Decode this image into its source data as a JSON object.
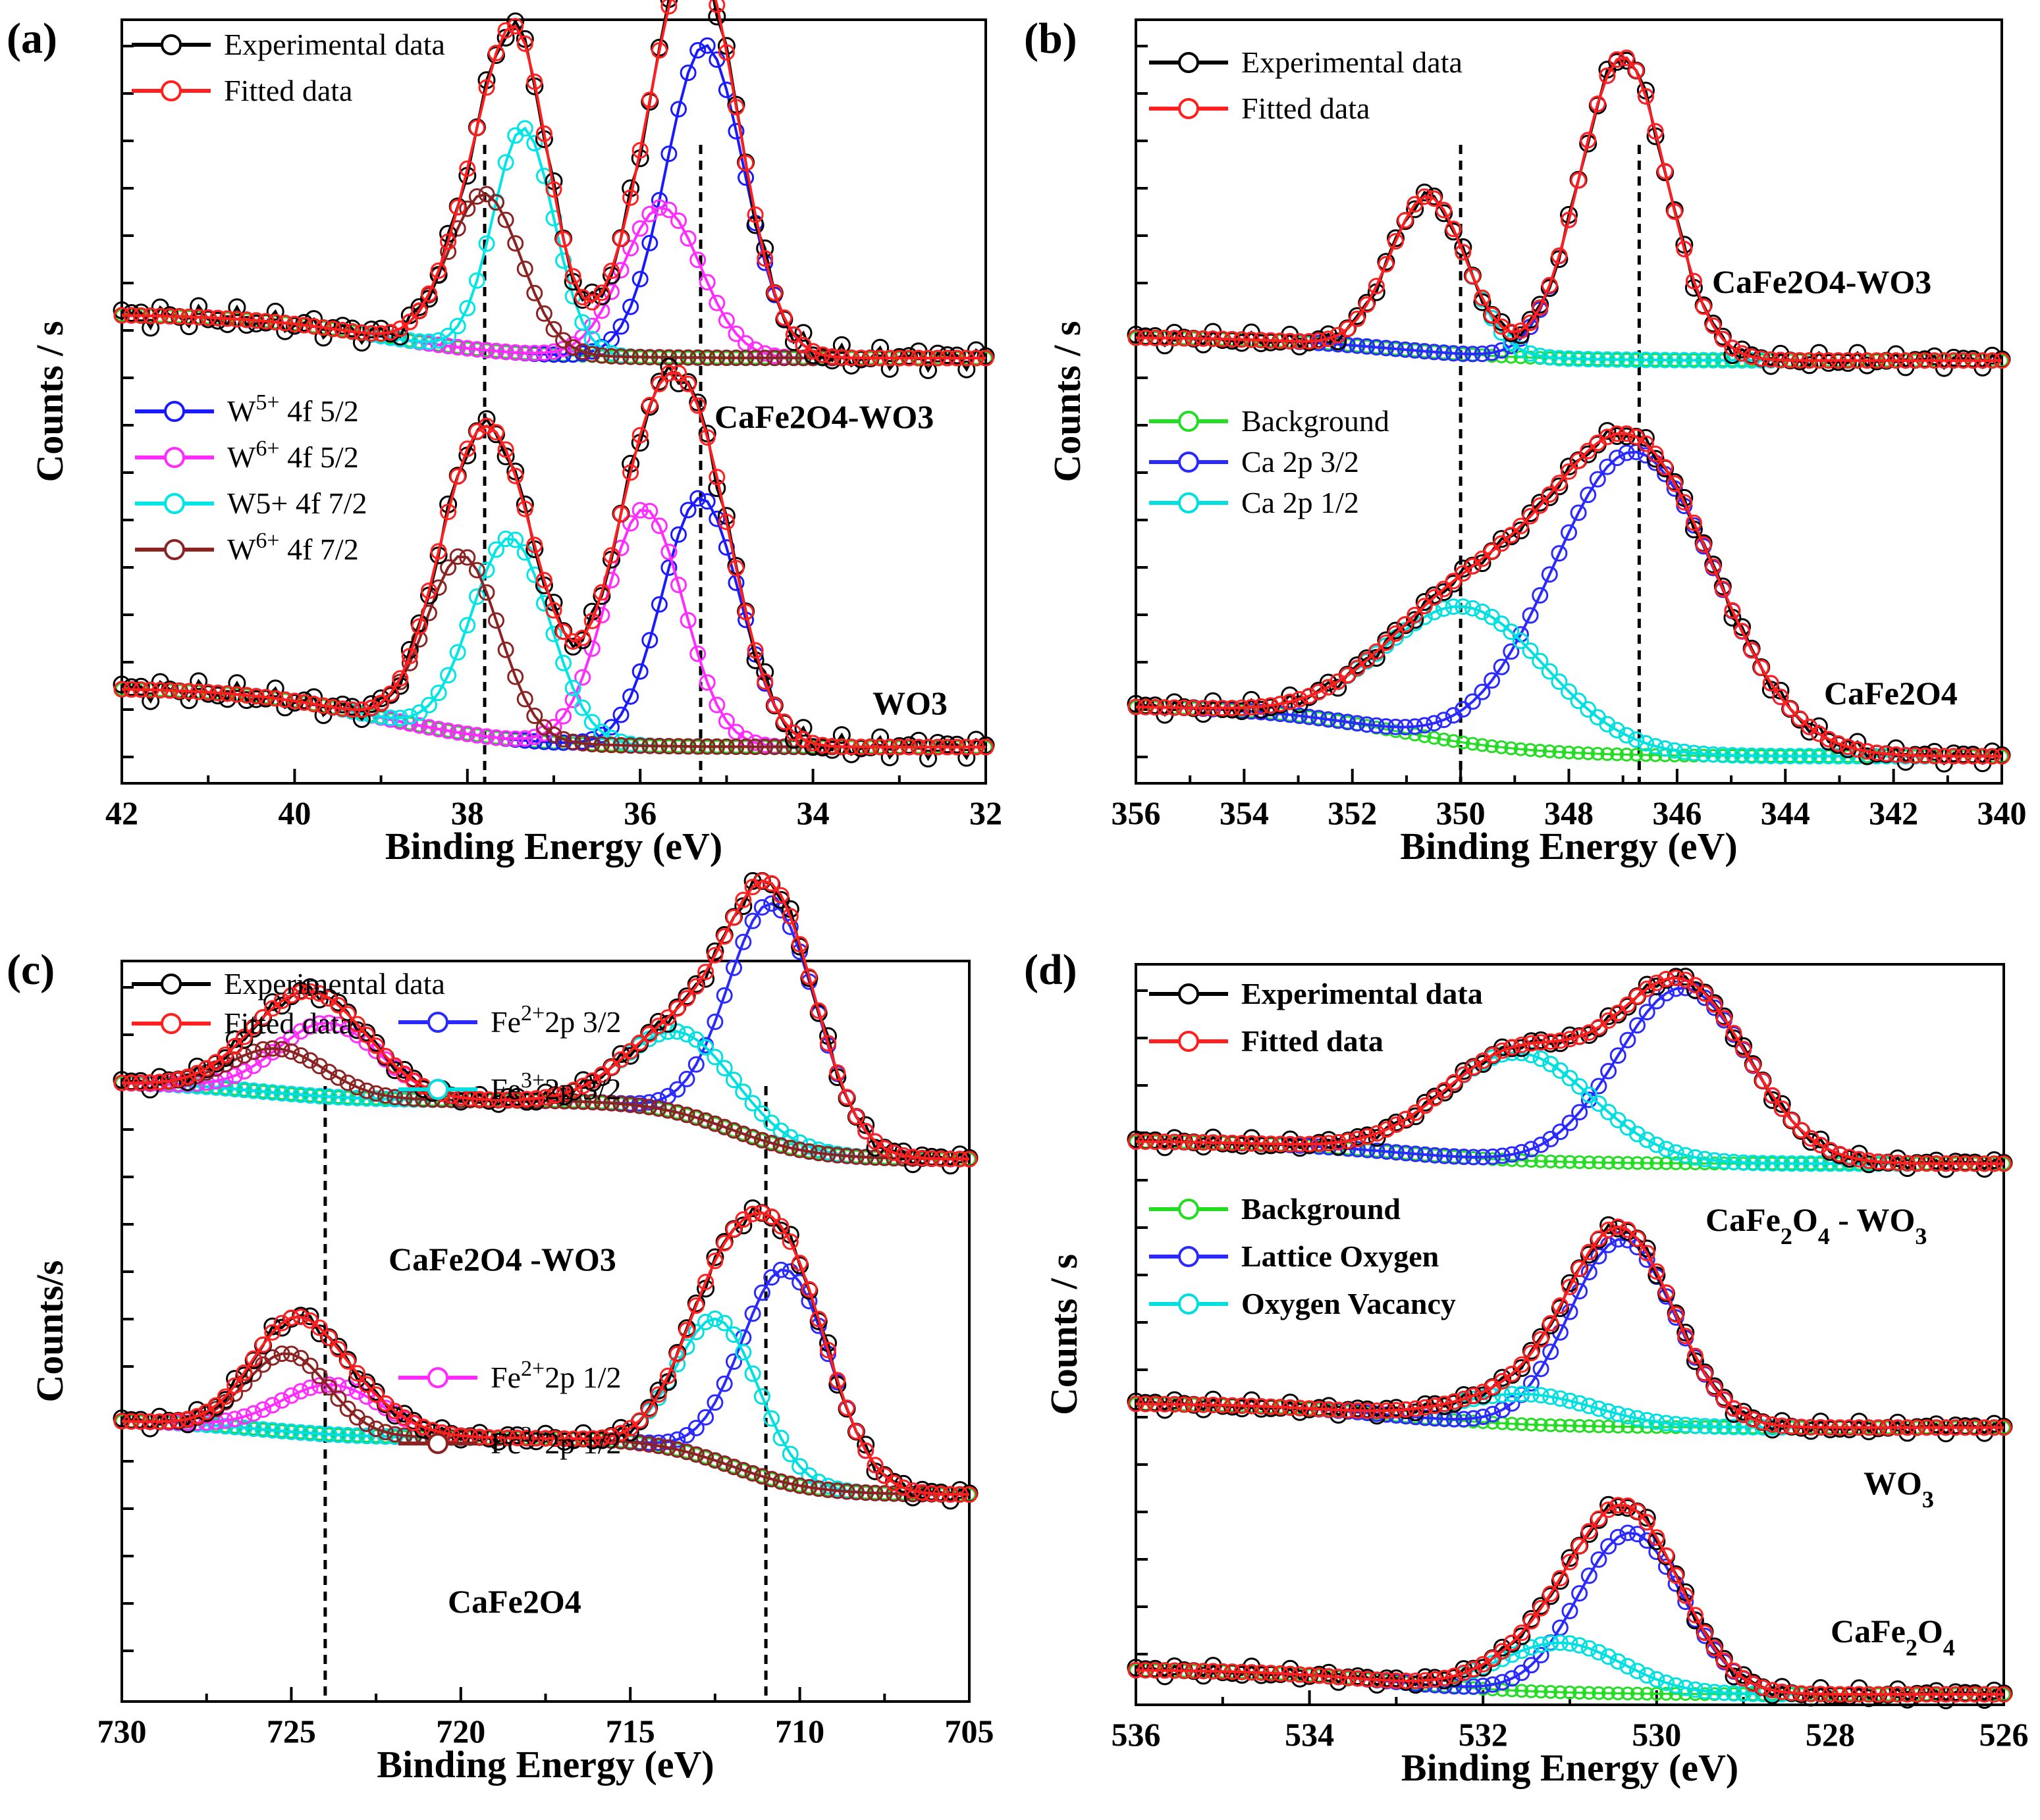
{
  "figure": {
    "colors": {
      "experimental": "#000000",
      "fitted": "#ff1f1f",
      "background": "#22dd22",
      "w5_52": "#1a1aff",
      "w6_52": "#ff2bff",
      "w5_72": "#00e5e5",
      "w6_72": "#8b2323",
      "ca_3_2": "#2a2aff",
      "ca_1_2": "#00e0e0",
      "fe2_3_2": "#2a2aff",
      "fe3_3_2": "#00e0e0",
      "fe2_1_2": "#ff2bff",
      "fe3_1_2": "#8b2323",
      "lattice": "#2a2aff",
      "vacancy": "#00e0e0"
    }
  },
  "chart_data": [
    {
      "panel": "(a)",
      "type": "line",
      "xlabel": "Binding Energy (eV)",
      "ylabel": "Counts / s",
      "xlim": [
        42,
        32
      ],
      "x_ticks": [
        42,
        40,
        38,
        36,
        34,
        32
      ],
      "y_ticks_labeled": false,
      "grid": false,
      "legend": [
        {
          "key": "exp",
          "label": "Experimental data",
          "color": "experimental"
        },
        {
          "key": "fit",
          "label": "Fitted data",
          "color": "fitted"
        },
        {
          "key": "p1",
          "label_main": "W",
          "label_sup": "5+",
          "label_rest": " 4f 5/2",
          "color": "w5_52"
        },
        {
          "key": "p2",
          "label_main": "W",
          "label_sup": "6+",
          "label_rest": " 4f 5/2",
          "color": "w6_52"
        },
        {
          "key": "p3",
          "label_main": "W5+ 4f 7/2",
          "label_sup": "",
          "label_rest": "",
          "color": "w5_72"
        },
        {
          "key": "p4",
          "label_main": "W",
          "label_sup": "6+",
          "label_rest": " 4f 7/2",
          "color": "w6_72"
        }
      ],
      "dashed_lines_x": [
        37.8,
        35.3
      ],
      "samples": [
        {
          "label": "CaFe2O4-WO3",
          "baseline": {
            "start": 0.05,
            "end": -0.02,
            "mid": 38
          },
          "peaks": [
            {
              "key": "p1",
              "center": 35.25,
              "height": 0.5,
              "width": 0.45
            },
            {
              "key": "p2",
              "center": 35.75,
              "height": 0.24,
              "width": 0.45
            },
            {
              "key": "p3",
              "center": 37.35,
              "height": 0.36,
              "width": 0.35
            },
            {
              "key": "p4",
              "center": 37.8,
              "height": 0.25,
              "width": 0.42
            }
          ]
        },
        {
          "label": "WO3",
          "baseline": {
            "start": 0.05,
            "end": -0.05,
            "mid": 38
          },
          "peaks": [
            {
              "key": "p1",
              "center": 35.3,
              "height": 0.42,
              "width": 0.45
            },
            {
              "key": "p2",
              "center": 35.95,
              "height": 0.4,
              "width": 0.45
            },
            {
              "key": "p3",
              "center": 37.5,
              "height": 0.34,
              "width": 0.45
            },
            {
              "key": "p4",
              "center": 38.05,
              "height": 0.3,
              "width": 0.42
            }
          ]
        }
      ]
    },
    {
      "panel": "(b)",
      "type": "line",
      "xlabel": "Binding Energy (eV)",
      "ylabel": "Counts / s",
      "xlim": [
        356,
        340
      ],
      "x_ticks": [
        356,
        354,
        352,
        350,
        348,
        346,
        344,
        342,
        340
      ],
      "y_ticks_labeled": false,
      "grid": false,
      "legend_top": [
        {
          "key": "exp",
          "label": "Experimental data",
          "color": "experimental"
        },
        {
          "key": "fit",
          "label": " Fitted data",
          "color": "fitted"
        }
      ],
      "legend_mid": [
        {
          "key": "bg",
          "label": "Background",
          "color": "background"
        },
        {
          "key": "p1",
          "label": "Ca 2p 3/2",
          "color": "ca_3_2"
        },
        {
          "key": "p2",
          "label": "Ca 2p 1/2",
          "color": "ca_1_2"
        }
      ],
      "dashed_lines_x": [
        350,
        346.7
      ],
      "samples": [
        {
          "label": "CaFe2O4-WO3",
          "baseline": {
            "start": 0.03,
            "end": -0.03
          },
          "peaks": [
            {
              "key": "p1",
              "center": 347.0,
              "height": 0.78,
              "width": 0.8
            },
            {
              "key": "p2",
              "center": 350.6,
              "height": 0.4,
              "width": 0.7
            }
          ]
        },
        {
          "label": "CaFe2O4",
          "baseline": {
            "start": 0.03,
            "end": -0.1
          },
          "peaks": [
            {
              "key": "p1",
              "center": 346.8,
              "height": 0.78,
              "width": 1.5
            },
            {
              "key": "p2",
              "center": 349.9,
              "height": 0.35,
              "width": 1.5
            }
          ]
        }
      ]
    },
    {
      "panel": "(c)",
      "type": "line",
      "xlabel": "Binding Energy (eV)",
      "ylabel": "Counts/s",
      "xlim": [
        730,
        705
      ],
      "x_ticks": [
        730,
        725,
        720,
        715,
        710,
        705
      ],
      "y_ticks_labeled": false,
      "grid": false,
      "legend_left": [
        {
          "key": "exp",
          "label": "Experimental data",
          "color": "experimental"
        },
        {
          "key": "fit",
          "label": "Fitted data",
          "color": "fitted"
        }
      ],
      "legend_right_top": [
        {
          "key": "p1",
          "label_main": "Fe",
          "label_sup": "2+",
          "label_rest": "2p 3/2",
          "color": "fe2_3_2"
        },
        {
          "key": "p2",
          "label_main": "Fe",
          "label_sup": "3+",
          "label_rest": "2p 3/2",
          "color": "fe3_3_2"
        }
      ],
      "legend_right_mid": [
        {
          "key": "p3",
          "label_main": "Fe",
          "label_sup": "2+",
          "label_rest": "2p 1/2",
          "color": "fe2_1_2"
        },
        {
          "key": "p4",
          "label_main": "Fc",
          "label_sup": "3+",
          "label_rest": "2p 1/2",
          "color": "fe3_1_2"
        }
      ],
      "dashed_lines_x": [
        724,
        711
      ],
      "samples": [
        {
          "label": "CaFe2O4 -WO3",
          "peaks": [
            {
              "key": "p1",
              "center": 710.8,
              "height": 0.65,
              "width": 1.3
            },
            {
              "key": "p2",
              "center": 713.5,
              "height": 0.22,
              "width": 1.6
            },
            {
              "key": "p3",
              "center": 723.9,
              "height": 0.2,
              "width": 1.5
            },
            {
              "key": "p4",
              "center": 725.4,
              "height": 0.12,
              "width": 1.4
            }
          ]
        },
        {
          "label": "CaFe2O4",
          "peaks": [
            {
              "key": "p1",
              "center": 710.4,
              "height": 0.6,
              "width": 1.3
            },
            {
              "key": "p2",
              "center": 712.4,
              "height": 0.4,
              "width": 1.2
            },
            {
              "key": "p3",
              "center": 723.8,
              "height": 0.14,
              "width": 1.5
            },
            {
              "key": "p4",
              "center": 725.1,
              "height": 0.22,
              "width": 1.2
            }
          ]
        }
      ]
    },
    {
      "panel": "(d)",
      "type": "line",
      "xlabel": "Binding Energy (eV)",
      "ylabel": "Counts / s",
      "xlim": [
        536,
        526
      ],
      "x_ticks": [
        536,
        534,
        532,
        530,
        528,
        526
      ],
      "y_ticks_labeled": false,
      "grid": false,
      "legend_top": [
        {
          "key": "exp",
          "label": "Experimental data",
          "color": "experimental"
        },
        {
          "key": "fit",
          "label": "Fitted data",
          "color": "fitted"
        }
      ],
      "legend_mid": [
        {
          "key": "bg",
          "label": "Background",
          "color": "background"
        },
        {
          "key": "p1",
          "label": "Lattice Oxygen",
          "color": "lattice"
        },
        {
          "key": "p2",
          "label": "Oxygen Vacancy",
          "color": "vacancy"
        }
      ],
      "samples": [
        {
          "label_main": "CaFe",
          "label_sub1": "2",
          "label_mid": "O",
          "label_sub2": "4",
          "label_rest": " - WO",
          "label_sub3": "3",
          "peaks": [
            {
              "key": "p1",
              "center": 529.7,
              "height": 0.62,
              "width": 0.75
            },
            {
              "key": "p2",
              "center": 531.6,
              "height": 0.38,
              "width": 0.85
            }
          ]
        },
        {
          "label_main": "WO",
          "label_sub1": "3",
          "label_mid": "",
          "label_sub2": "",
          "label_rest": "",
          "label_sub3": "",
          "peaks": [
            {
              "key": "p1",
              "center": 530.4,
              "height": 0.62,
              "width": 0.6
            },
            {
              "key": "p2",
              "center": 531.5,
              "height": 0.1,
              "width": 0.8
            }
          ]
        },
        {
          "label_main": "CaFe",
          "label_sub1": "2",
          "label_mid": "O",
          "label_sub2": "4",
          "label_rest": "",
          "label_sub3": "",
          "peaks": [
            {
              "key": "p1",
              "center": 530.3,
              "height": 0.52,
              "width": 0.6
            },
            {
              "key": "p2",
              "center": 531.1,
              "height": 0.16,
              "width": 0.7
            }
          ]
        }
      ]
    }
  ]
}
